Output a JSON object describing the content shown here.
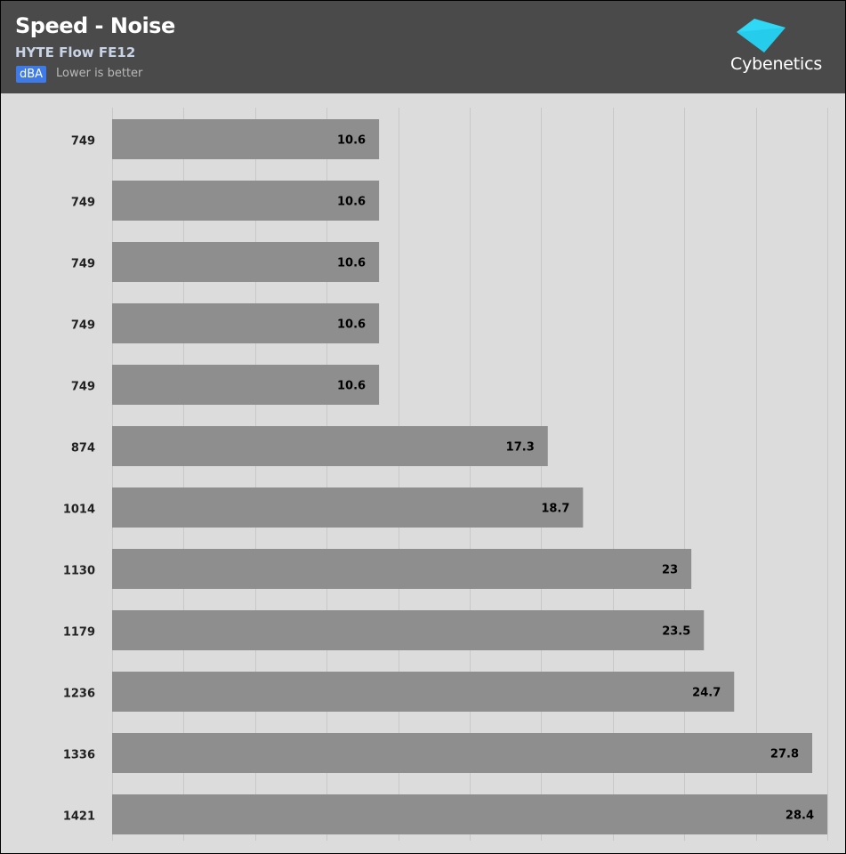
{
  "header": {
    "title": "Speed - Noise",
    "subtitle": "HYTE Flow FE12",
    "unit": "dBA",
    "note": "Lower is better",
    "logo_text": "Cybenetics"
  },
  "colors": {
    "header_bg": "#4a4a4a",
    "plot_bg": "#dcdcdc",
    "bar": "#8e8e8e",
    "grid": "#c8c8c8",
    "badge": "#3e7be8",
    "logo": "#2fd8f5"
  },
  "chart_data": {
    "type": "bar",
    "orientation": "horizontal",
    "title": "Speed - Noise",
    "subtitle": "HYTE Flow FE12",
    "unit": "dBA",
    "categories": [
      "749",
      "749",
      "749",
      "749",
      "749",
      "874",
      "1014",
      "1130",
      "1179",
      "1236",
      "1336",
      "1421"
    ],
    "values": [
      10.6,
      10.6,
      10.6,
      10.6,
      10.6,
      17.3,
      18.7,
      23,
      23.5,
      24.7,
      27.8,
      28.4
    ],
    "value_labels": [
      "10.6",
      "10.6",
      "10.6",
      "10.6",
      "10.6",
      "17.3",
      "18.7",
      "23",
      "23.5",
      "24.7",
      "27.8",
      "28.4"
    ],
    "xlim": [
      0,
      28.4
    ],
    "grid": true,
    "legend": "none"
  }
}
